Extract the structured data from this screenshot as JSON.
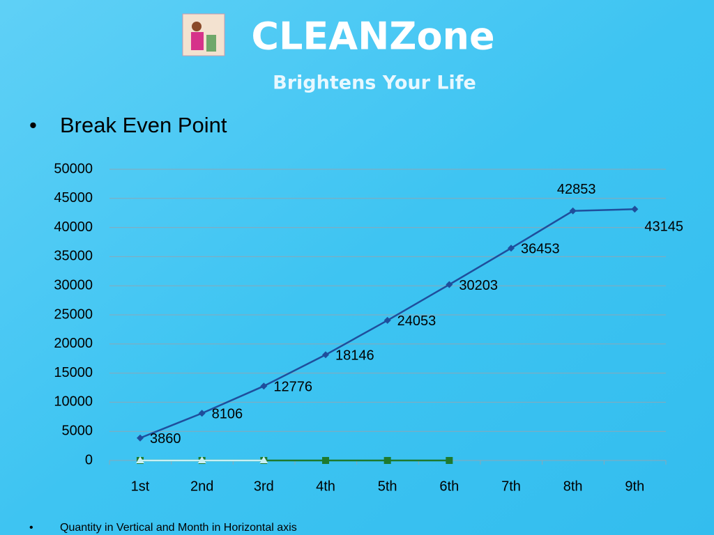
{
  "header": {
    "title": "CLEANZone",
    "subtitle": "Brightens Your Life"
  },
  "bullet": "Break Even Point",
  "footnote": "Quantity in Vertical and Month in Horizontal  axis",
  "chart_data": {
    "type": "line",
    "categories": [
      "1st",
      "2nd",
      "3rd",
      "4th",
      "5th",
      "6th",
      "7th",
      "8th",
      "9th"
    ],
    "series": [
      {
        "color": "#1f4e9c",
        "marker": "diamond",
        "values": [
          3860,
          8106,
          12776,
          18146,
          24053,
          30203,
          36453,
          42853,
          43145
        ]
      },
      {
        "color": "#1e7a2e",
        "marker": "square",
        "values": [
          0,
          0,
          0,
          0,
          0,
          0,
          null,
          null,
          null
        ]
      },
      {
        "color": "#c8f0f4",
        "marker": "triangle",
        "values": [
          0,
          0,
          0,
          null,
          null,
          null,
          null,
          null,
          null
        ]
      }
    ],
    "ylim": [
      0,
      50000
    ],
    "yticks": [
      0,
      5000,
      10000,
      15000,
      20000,
      25000,
      30000,
      35000,
      40000,
      45000,
      50000
    ],
    "grid": true
  }
}
